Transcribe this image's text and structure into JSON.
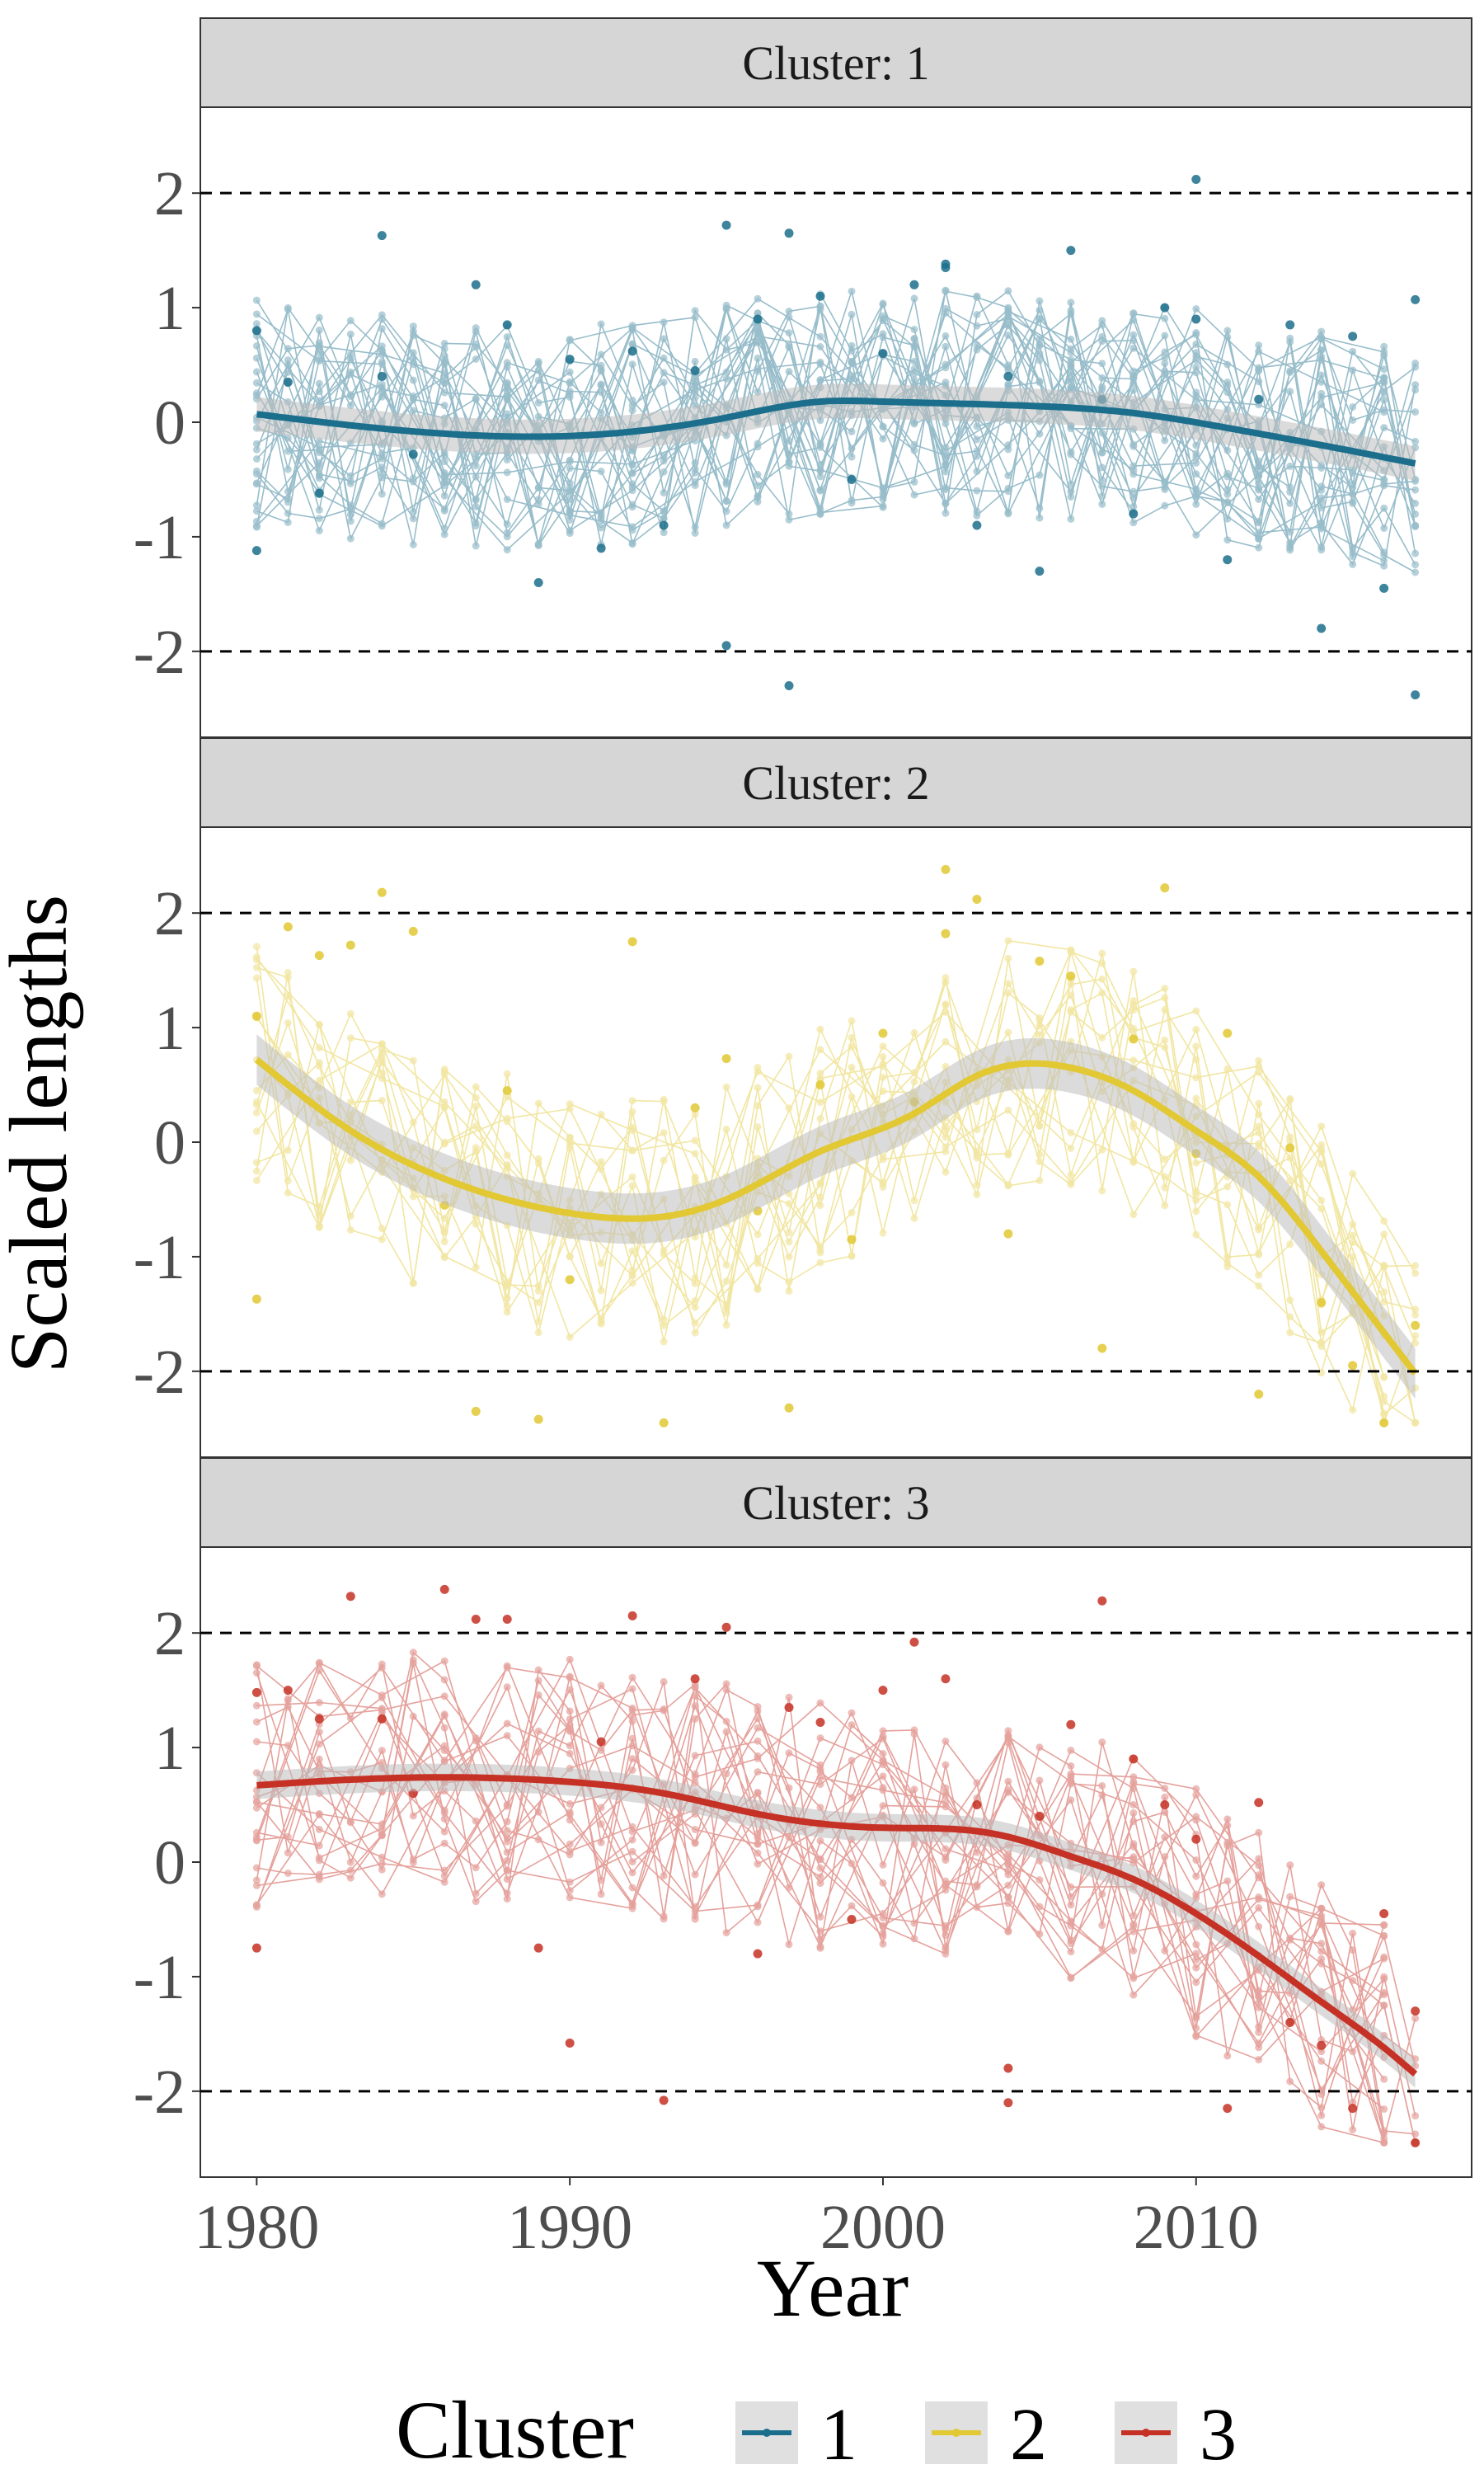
{
  "chart_data": {
    "type": "line",
    "xlabel": "Year",
    "ylabel": "Scaled lengths",
    "xlim": [
      1978.2,
      2018.8
    ],
    "ylim": [
      -2.75,
      2.75
    ],
    "x_ticks": [
      "1980",
      "1990",
      "2000",
      "2010"
    ],
    "x_tick_values": [
      1980,
      1990,
      2000,
      2010
    ],
    "y_ticks": [
      "-2",
      "-1",
      "0",
      "1",
      "2"
    ],
    "y_tick_values": [
      -2,
      -1,
      0,
      1,
      2
    ],
    "reference_lines": [
      -2,
      2
    ],
    "grid": false,
    "legend": {
      "title": "Cluster",
      "position": "bottom",
      "entries": [
        "1",
        "2",
        "3"
      ]
    },
    "panels": [
      {
        "strip": "Cluster: 1",
        "color": "#1c6f8c",
        "smooth": {
          "x": [
            1980,
            1985,
            1990,
            1993,
            1995,
            1998,
            2000,
            2005,
            2008,
            2011,
            2014,
            2017
          ],
          "y": [
            0.07,
            -0.08,
            -0.12,
            -0.05,
            0.04,
            0.18,
            0.18,
            0.14,
            0.08,
            -0.05,
            -0.2,
            -0.36
          ]
        },
        "band": 0.15,
        "points": {
          "x": [
            1980,
            1980,
            1981,
            1982,
            1984,
            1985,
            1987,
            1988,
            1989,
            1990,
            1991,
            1992,
            1993,
            1994,
            1995,
            1996,
            1997,
            1998,
            1999,
            2000,
            2001,
            2002,
            2003,
            2004,
            2005,
            2006,
            2007,
            2008,
            2009,
            2010,
            2011,
            2012,
            2013,
            2014,
            2015,
            2016,
            2017,
            2017,
            1995,
            1997,
            2010,
            1984,
            2002
          ],
          "y": [
            0.8,
            -1.12,
            0.35,
            -0.62,
            1.63,
            -0.28,
            1.2,
            0.85,
            -1.4,
            0.55,
            -1.1,
            0.62,
            -0.9,
            0.45,
            1.72,
            0.9,
            -2.3,
            1.1,
            -0.5,
            0.6,
            1.2,
            1.38,
            -0.9,
            0.4,
            -1.3,
            1.5,
            0.2,
            -0.8,
            1.0,
            2.12,
            -1.2,
            0.2,
            0.85,
            -1.8,
            0.75,
            -1.45,
            1.07,
            -2.38,
            -1.95,
            1.65,
            0.9,
            0.4,
            1.35
          ]
        }
      },
      {
        "strip": "Cluster: 2",
        "color": "#e2c833",
        "smooth": {
          "x": [
            1980,
            1983,
            1986,
            1990,
            1993,
            1995,
            1998,
            2001,
            2003,
            2006,
            2008,
            2010,
            2012,
            2014,
            2017
          ],
          "y": [
            0.72,
            0.1,
            -0.32,
            -0.62,
            -0.65,
            -0.5,
            -0.08,
            0.25,
            0.58,
            0.65,
            0.45,
            0.1,
            -0.3,
            -0.95,
            -2.02
          ]
        },
        "band": 0.22,
        "points": {
          "x": [
            1980,
            1980,
            1981,
            1982,
            1983,
            1984,
            1985,
            1986,
            1987,
            1988,
            1989,
            1990,
            1992,
            1993,
            1994,
            1995,
            1996,
            1997,
            1998,
            1999,
            2000,
            2001,
            2002,
            2002,
            2003,
            2004,
            2005,
            2006,
            2007,
            2008,
            2009,
            2010,
            2011,
            2012,
            2013,
            2014,
            2015,
            2016,
            2017
          ],
          "y": [
            1.1,
            -1.37,
            1.88,
            1.63,
            1.72,
            2.18,
            1.84,
            -0.55,
            -2.35,
            0.45,
            -2.42,
            -1.2,
            1.75,
            -2.45,
            0.3,
            0.73,
            -0.6,
            -2.32,
            0.5,
            -0.85,
            0.95,
            0.35,
            2.38,
            1.82,
            2.12,
            -0.8,
            1.58,
            1.45,
            -1.8,
            0.9,
            2.22,
            -0.1,
            0.95,
            -2.2,
            -0.05,
            -1.4,
            -1.95,
            -2.45,
            -1.6
          ]
        }
      },
      {
        "strip": "Cluster: 3",
        "color": "#c63125",
        "smooth": {
          "x": [
            1980,
            1983,
            1986,
            1990,
            1993,
            1996,
            2000,
            2003,
            2004,
            2006,
            2008,
            2010,
            2012,
            2014,
            2016,
            2017
          ],
          "y": [
            0.67,
            0.72,
            0.74,
            0.7,
            0.6,
            0.42,
            0.3,
            0.27,
            0.22,
            0.05,
            -0.15,
            -0.45,
            -0.82,
            -1.22,
            -1.62,
            -1.85
          ]
        },
        "band": 0.12,
        "points": {
          "x": [
            1980,
            1980,
            1981,
            1982,
            1983,
            1984,
            1985,
            1986,
            1987,
            1988,
            1989,
            1990,
            1991,
            1992,
            1993,
            1994,
            1995,
            1996,
            1997,
            1998,
            1999,
            2000,
            2001,
            2002,
            2003,
            2004,
            2004,
            2005,
            2006,
            2007,
            2008,
            2009,
            2010,
            2011,
            2012,
            2013,
            2014,
            2015,
            2016,
            2017,
            2017
          ],
          "y": [
            1.48,
            -0.75,
            1.5,
            1.25,
            2.32,
            1.25,
            0.6,
            2.38,
            2.12,
            2.12,
            -0.75,
            -1.58,
            1.05,
            2.15,
            -2.08,
            1.6,
            2.05,
            -0.8,
            1.35,
            1.22,
            -0.5,
            1.5,
            1.92,
            1.6,
            0.5,
            -1.8,
            -2.1,
            0.4,
            1.2,
            2.28,
            0.9,
            0.5,
            0.2,
            -2.15,
            0.52,
            -1.4,
            -1.6,
            -2.15,
            -0.45,
            -1.3,
            -2.45
          ]
        }
      }
    ]
  }
}
